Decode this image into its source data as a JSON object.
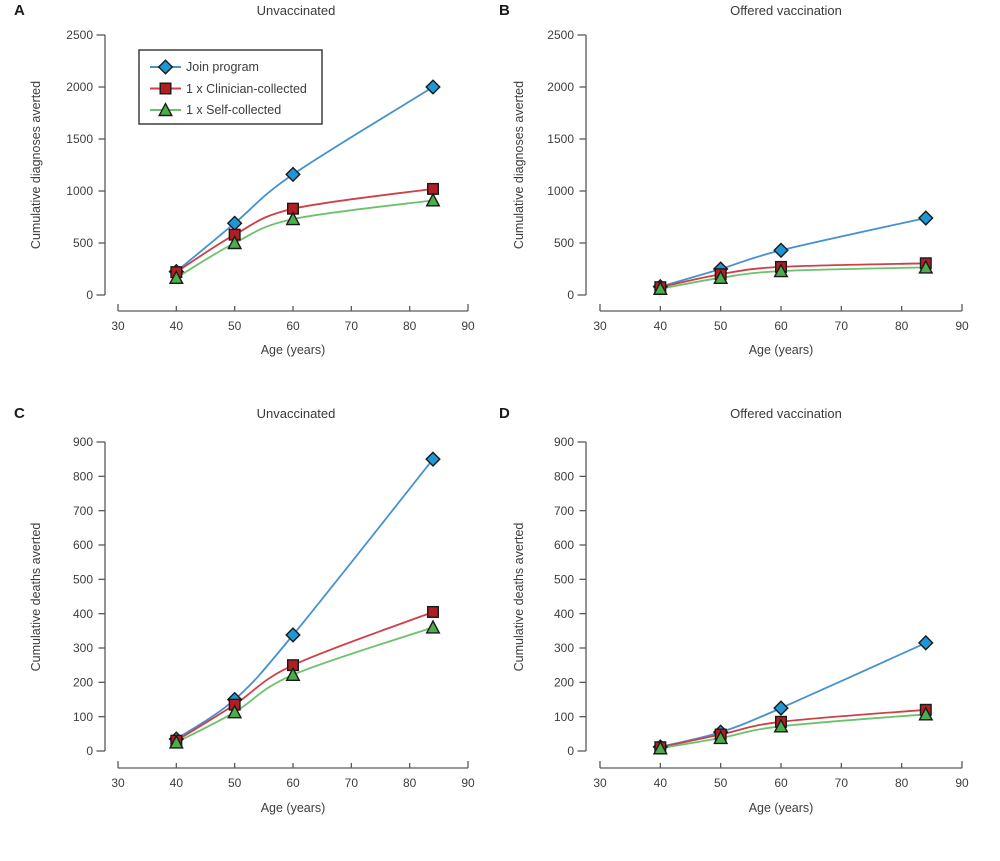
{
  "colors": {
    "background": "#ffffff",
    "axis": "#58595b",
    "text": "#3d3d3d",
    "marker_stroke": "#1a1a1a",
    "legend_border": "#3e3e3e",
    "series": {
      "join_program": {
        "line": "#4692cf",
        "marker": "#1d97d5"
      },
      "clinician": {
        "line": "#cf4046",
        "marker": "#b01f24"
      },
      "self": {
        "line": "#6cc26c",
        "marker": "#4aae4a"
      }
    }
  },
  "legend": {
    "entries": [
      {
        "label": "Join program",
        "marker": "diamond",
        "series": "join_program"
      },
      {
        "label": "1 x Clinician-collected",
        "marker": "square",
        "series": "clinician"
      },
      {
        "label": "1 x Self-collected",
        "marker": "triangle",
        "series": "self"
      }
    ]
  },
  "chart_data": [
    {
      "type": "line",
      "panel_letter": "A",
      "title": "Unvaccinated",
      "xlabel": "Age (years)",
      "ylabel": "Cumulative diagnoses averted",
      "x": [
        40,
        50,
        60,
        84
      ],
      "xlim": [
        30,
        90
      ],
      "xticks": [
        30,
        40,
        50,
        60,
        70,
        80,
        90
      ],
      "ylim": [
        0,
        2500
      ],
      "yticks": [
        0,
        500,
        1000,
        1500,
        2000,
        2500
      ],
      "grid": false,
      "legend_position": "upper-left-inside",
      "series": [
        {
          "name": "Join program",
          "marker": "diamond",
          "values": [
            225,
            690,
            1160,
            2000
          ]
        },
        {
          "name": "1 x Clinician-collected",
          "marker": "square",
          "values": [
            220,
            580,
            830,
            1020
          ]
        },
        {
          "name": "1 x Self-collected",
          "marker": "triangle",
          "values": [
            165,
            500,
            730,
            910
          ]
        }
      ]
    },
    {
      "type": "line",
      "panel_letter": "B",
      "title": "Offered vaccination",
      "xlabel": "Age (years)",
      "ylabel": "Cumulative diagnoses averted",
      "x": [
        40,
        50,
        60,
        84
      ],
      "xlim": [
        30,
        90
      ],
      "xticks": [
        30,
        40,
        50,
        60,
        70,
        80,
        90
      ],
      "ylim": [
        0,
        2500
      ],
      "yticks": [
        0,
        500,
        1000,
        1500,
        2000,
        2500
      ],
      "grid": false,
      "legend_position": "none",
      "series": [
        {
          "name": "Join program",
          "marker": "diamond",
          "values": [
            80,
            250,
            430,
            740
          ]
        },
        {
          "name": "1 x Clinician-collected",
          "marker": "square",
          "values": [
            75,
            200,
            270,
            305
          ]
        },
        {
          "name": "1 x Self-collected",
          "marker": "triangle",
          "values": [
            60,
            165,
            230,
            265
          ]
        }
      ]
    },
    {
      "type": "line",
      "panel_letter": "C",
      "title": "Unvaccinated",
      "xlabel": "Age (years)",
      "ylabel": "Cumulative deaths averted",
      "x": [
        40,
        50,
        60,
        84
      ],
      "xlim": [
        30,
        90
      ],
      "xticks": [
        30,
        40,
        50,
        60,
        70,
        80,
        90
      ],
      "ylim": [
        0,
        900
      ],
      "yticks": [
        0,
        100,
        200,
        300,
        400,
        500,
        600,
        700,
        800,
        900
      ],
      "grid": false,
      "legend_position": "none",
      "series": [
        {
          "name": "Join program",
          "marker": "diamond",
          "values": [
            35,
            150,
            338,
            850
          ]
        },
        {
          "name": "1 x Clinician-collected",
          "marker": "square",
          "values": [
            30,
            135,
            250,
            405
          ]
        },
        {
          "name": "1 x Self-collected",
          "marker": "triangle",
          "values": [
            25,
            113,
            222,
            360
          ]
        }
      ]
    },
    {
      "type": "line",
      "panel_letter": "D",
      "title": "Offered vaccination",
      "xlabel": "Age (years)",
      "ylabel": "Cumulative deaths averted",
      "x": [
        40,
        50,
        60,
        84
      ],
      "xlim": [
        30,
        90
      ],
      "xticks": [
        30,
        40,
        50,
        60,
        70,
        80,
        90
      ],
      "ylim": [
        0,
        900
      ],
      "yticks": [
        0,
        100,
        200,
        300,
        400,
        500,
        600,
        700,
        800,
        900
      ],
      "grid": false,
      "legend_position": "none",
      "series": [
        {
          "name": "Join program",
          "marker": "diamond",
          "values": [
            12,
            55,
            125,
            315
          ]
        },
        {
          "name": "1 x Clinician-collected",
          "marker": "square",
          "values": [
            11,
            48,
            85,
            120
          ]
        },
        {
          "name": "1 x Self-collected",
          "marker": "triangle",
          "values": [
            8,
            38,
            72,
            107
          ]
        }
      ]
    }
  ]
}
